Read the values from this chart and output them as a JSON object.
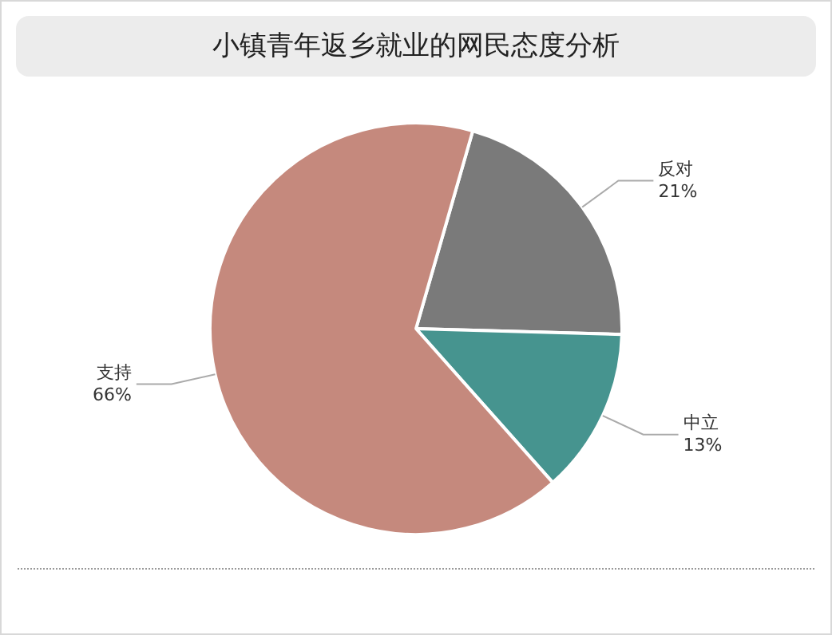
{
  "chart_data": {
    "type": "pie",
    "title": "小镇青年返乡就业的网民态度分析",
    "categories": [
      "反对",
      "中立",
      "支持"
    ],
    "values": [
      21,
      13,
      66
    ],
    "value_labels": [
      "21%",
      "13%",
      "66%"
    ],
    "colors": [
      "#7a7a7a",
      "#46948f",
      "#c5897d"
    ],
    "legend": false
  }
}
